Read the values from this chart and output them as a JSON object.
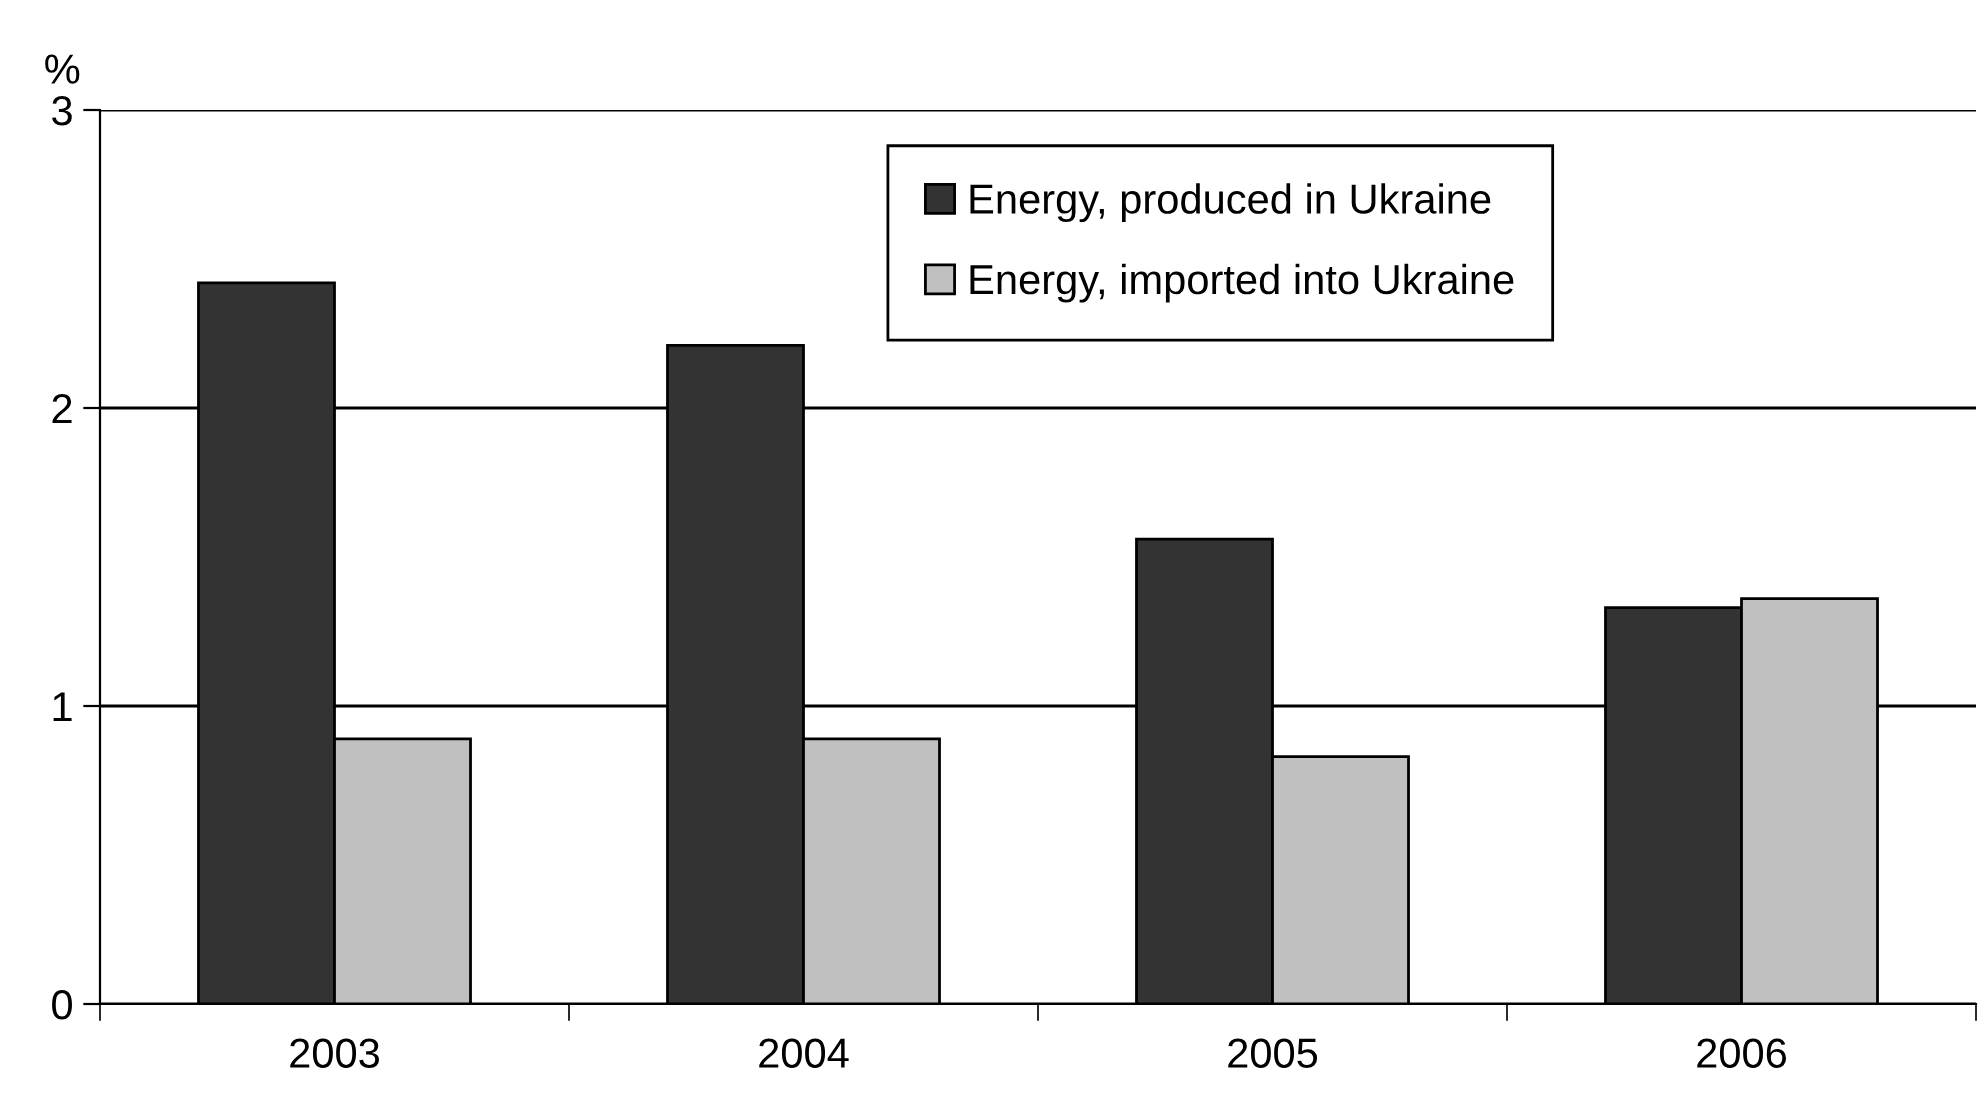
{
  "chart_data": {
    "type": "bar",
    "ylabel": "%",
    "categories": [
      "2003",
      "2004",
      "2005",
      "2006"
    ],
    "series": [
      {
        "name": "Energy, produced in Ukraine",
        "color": "#333333",
        "values": [
          2.42,
          2.21,
          1.56,
          1.33
        ]
      },
      {
        "name": "Energy, imported into Ukraine",
        "color": "#c0c0c0",
        "values": [
          0.89,
          0.89,
          0.83,
          1.36
        ]
      }
    ],
    "ylim": [
      0,
      3
    ],
    "yticks": [
      0,
      1,
      2,
      3
    ],
    "grid": "y",
    "legend": "top right"
  }
}
